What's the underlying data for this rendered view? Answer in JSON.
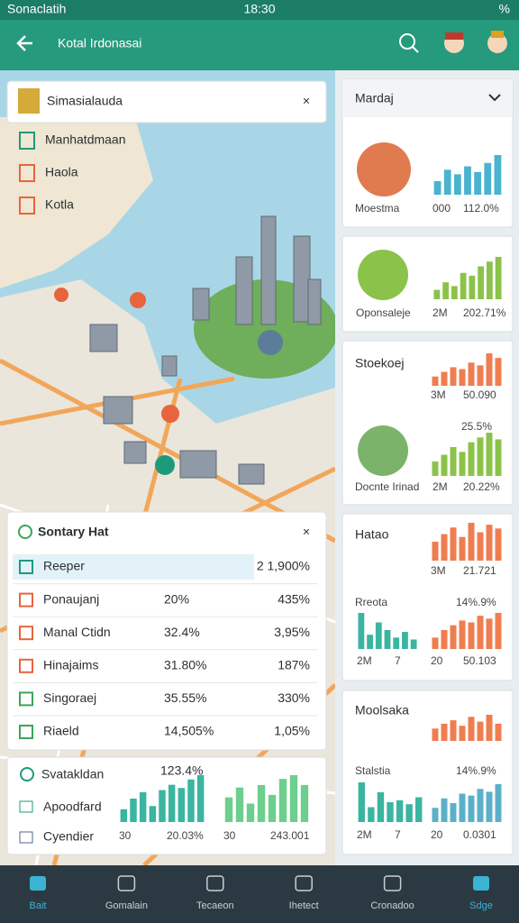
{
  "status": {
    "carrier": "Sonaclatih",
    "time": "18:30",
    "battery": "%"
  },
  "appbar": {
    "title": "Kotal Irdonasai"
  },
  "legend_card": {
    "title": "Simasialauda",
    "items": [
      "Manhatdmaan",
      "Haola",
      "Kotla"
    ]
  },
  "table": {
    "title": "Sontary Hat",
    "rows": [
      [
        "Reeper",
        "2 1,900%"
      ],
      [
        "Ponaujanj",
        "20%",
        "435%"
      ],
      [
        "Manal Ctidn",
        "32.4%",
        "3,95%"
      ],
      [
        "Hinajaims",
        "31.80%",
        "187%"
      ],
      [
        "Singoraej",
        "35.55%",
        "330%"
      ],
      [
        "Riaeld",
        "14,505%",
        "1,05%"
      ]
    ]
  },
  "summary": {
    "title": "Svatakldan",
    "value": "123.4%",
    "items": [
      "Apoodfard",
      "Cyendier"
    ],
    "labels": [
      "30",
      "20.03%",
      "30",
      "243.001"
    ]
  },
  "side": {
    "dropdown": "Mardaj",
    "card1": [
      "Moestma",
      "000",
      "112.0%"
    ],
    "card2": [
      "Oponsaleje",
      "2M",
      "202.71%"
    ],
    "card3": {
      "title": "Stoekoej",
      "top": [
        "3M",
        "50.090"
      ],
      "value": "25.5%",
      "bottom": [
        "Docnte Irinad",
        "2M",
        "20.22%"
      ]
    },
    "card4": {
      "title": "Hatao",
      "top": [
        "3M",
        "21.721"
      ],
      "sub": "Rreota",
      "value": "14%.9%",
      "bottom": [
        "2M",
        "7",
        "20",
        "50.103"
      ]
    },
    "card5": {
      "title": "Moolsaka",
      "sub": "Stalstia",
      "value": "14%.9%",
      "bottom": [
        "2M",
        "7",
        "20",
        "0.0301"
      ]
    }
  },
  "charts": [
    {
      "color": "#4ab3cf",
      "values": [
        12,
        22,
        18,
        25,
        20,
        28,
        35
      ]
    },
    {
      "color": "#8bc34a",
      "values": [
        10,
        18,
        14,
        28,
        25,
        35,
        40,
        45
      ]
    },
    {
      "color": "#ef7d4f",
      "values": [
        10,
        15,
        20,
        18,
        25,
        22,
        35,
        30
      ]
    },
    {
      "color": "#8bc34a",
      "values": [
        15,
        22,
        30,
        25,
        35,
        40,
        45,
        38
      ]
    },
    {
      "color": "#ef7d4f",
      "values": [
        20,
        28,
        35,
        25,
        40,
        30,
        38,
        34
      ]
    },
    {
      "color": "#3ab5a0",
      "values": [
        38,
        15,
        28,
        20,
        12,
        18,
        10
      ]
    },
    {
      "color": "#ef7d4f",
      "values": [
        12,
        20,
        25,
        30,
        28,
        35,
        32,
        38
      ]
    },
    {
      "color": "#ef7d4f",
      "values": [
        18,
        25,
        30,
        22,
        35,
        28,
        38,
        25
      ]
    },
    {
      "color": "#3ab5a0",
      "values": [
        40,
        15,
        30,
        20,
        22,
        18,
        25
      ]
    },
    {
      "color": "#5bb0c8",
      "values": [
        15,
        25,
        20,
        30,
        28,
        35,
        32,
        40
      ]
    },
    {
      "color": "#3ab5a0",
      "values": [
        12,
        22,
        28,
        15,
        30,
        35,
        32,
        40,
        44
      ]
    },
    {
      "color": "#6ccf8e",
      "values": [
        20,
        28,
        15,
        30,
        22,
        35,
        38,
        30
      ]
    }
  ],
  "nav": [
    "Bait",
    "Gomalain",
    "Tecaeon",
    "Ihetect",
    "Cronadoo",
    "Sdge"
  ]
}
